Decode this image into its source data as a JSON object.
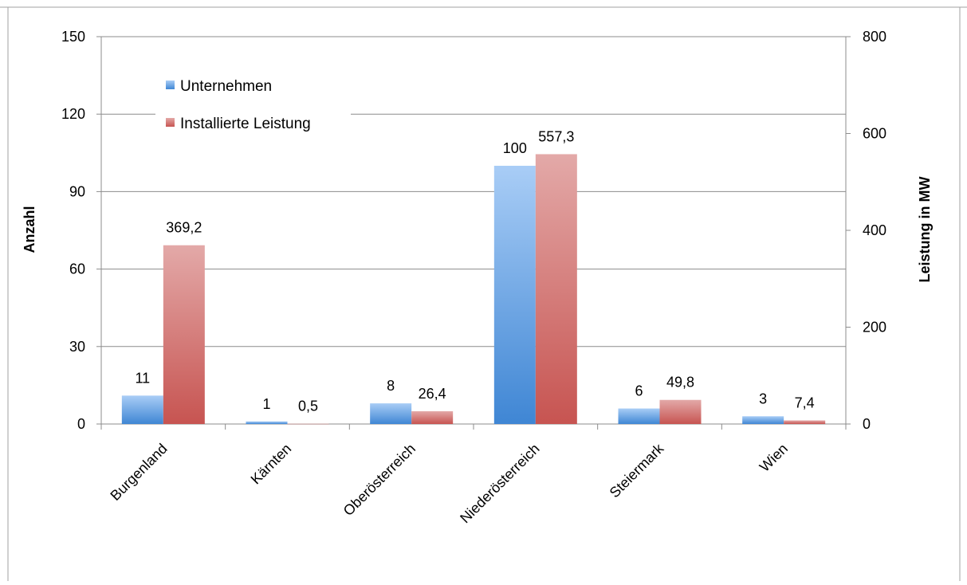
{
  "chart_data": {
    "type": "bar",
    "categories": [
      "Burgenland",
      "Kärnten",
      "Oberösterreich",
      "Niederösterreich",
      "Steiermark",
      "Wien"
    ],
    "series": [
      {
        "name": "Unternehmen",
        "axis": "left",
        "values": [
          11,
          1,
          8,
          100,
          6,
          3
        ],
        "labels": [
          "11",
          "1",
          "8",
          "100",
          "6",
          "3"
        ],
        "color": "#4a8fd8"
      },
      {
        "name": "Installierte Leistung",
        "axis": "right",
        "values": [
          369.2,
          0.5,
          26.4,
          557.3,
          49.8,
          7.4
        ],
        "labels": [
          "369,2",
          "0,5",
          "26,4",
          "557,3",
          "49,8",
          "7,4"
        ],
        "color": "#cf5c5a"
      }
    ],
    "ylabel": "Anzahl",
    "ylabel_right": "Leistung in MW",
    "ylim": [
      0,
      150
    ],
    "yticks": [
      "0",
      "30",
      "60",
      "90",
      "120",
      "150"
    ],
    "ylim_right": [
      0,
      800
    ],
    "yticks_right": [
      "0",
      "200",
      "400",
      "600",
      "800"
    ],
    "grid": true,
    "legend_position": "top-left"
  }
}
